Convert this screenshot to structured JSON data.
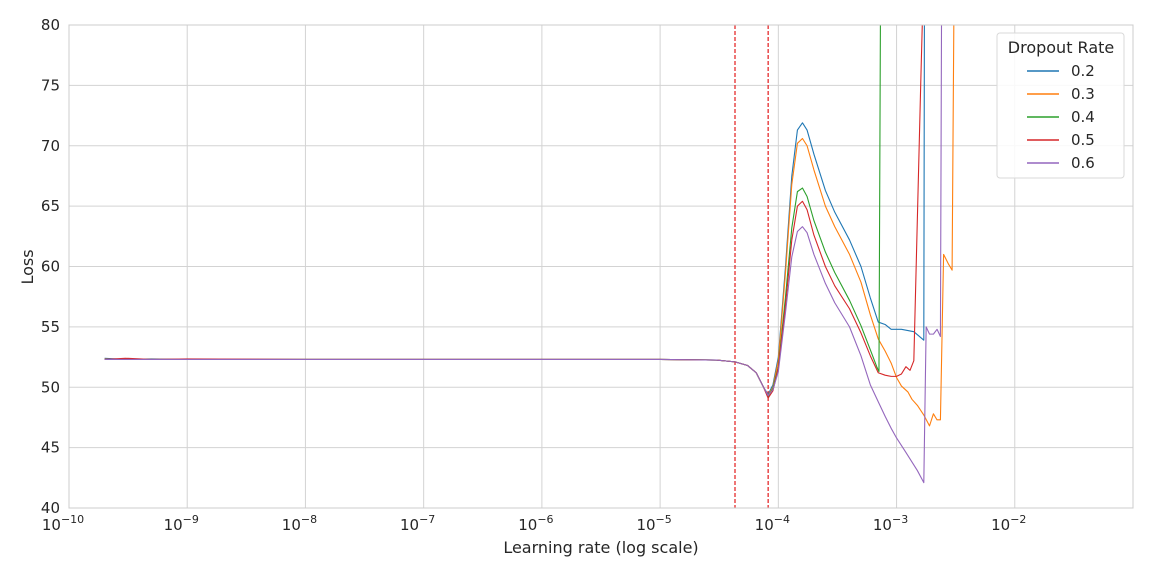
{
  "chart_data": {
    "type": "line",
    "xlabel": "Learning rate (log scale)",
    "ylabel": "Loss",
    "xscale": "log",
    "xlim": [
      1e-10,
      0.1
    ],
    "ylim": [
      40,
      80
    ],
    "grid": true,
    "legend_placement": "top-right",
    "legend_title": "Dropout Rate",
    "x_ticks": [
      {
        "value": 1e-10,
        "base": "10",
        "exp": "−10"
      },
      {
        "value": 1e-09,
        "base": "10",
        "exp": "−9"
      },
      {
        "value": 1e-08,
        "base": "10",
        "exp": "−8"
      },
      {
        "value": 1e-07,
        "base": "10",
        "exp": "−7"
      },
      {
        "value": 1e-06,
        "base": "10",
        "exp": "−6"
      },
      {
        "value": 1e-05,
        "base": "10",
        "exp": "−5"
      },
      {
        "value": 0.0001,
        "base": "10",
        "exp": "−4"
      },
      {
        "value": 0.001,
        "base": "10",
        "exp": "−3"
      },
      {
        "value": 0.01,
        "base": "10",
        "exp": "−2"
      }
    ],
    "y_ticks": [
      40,
      45,
      50,
      55,
      60,
      65,
      70,
      75,
      80
    ],
    "annotations": {
      "vertical_lines": [
        {
          "x": 4.3e-05,
          "color": "#e31a1c",
          "style": "dashed"
        },
        {
          "x": 8.2e-05,
          "color": "#e31a1c",
          "style": "dashed"
        }
      ]
    },
    "series": [
      {
        "name": "0.2",
        "color": "#1f77b4",
        "points": [
          [
            2e-10,
            52.4
          ],
          [
            3e-10,
            52.3
          ],
          [
            5e-10,
            52.35
          ],
          [
            1e-09,
            52.3
          ],
          [
            1e-08,
            52.3
          ],
          [
            1e-07,
            52.3
          ],
          [
            1e-06,
            52.3
          ],
          [
            1e-05,
            52.3
          ],
          [
            3e-05,
            52.25
          ],
          [
            4.3e-05,
            52.1
          ],
          [
            5.5e-05,
            51.8
          ],
          [
            6.5e-05,
            51.2
          ],
          [
            7.5e-05,
            50.0
          ],
          [
            8.2e-05,
            49.4
          ],
          [
            9e-05,
            50.2
          ],
          [
            0.0001,
            52.5
          ],
          [
            0.000115,
            60.0
          ],
          [
            0.00013,
            67.5
          ],
          [
            0.000145,
            71.3
          ],
          [
            0.00016,
            71.9
          ],
          [
            0.000175,
            71.3
          ],
          [
            0.0002,
            69.3
          ],
          [
            0.00025,
            66.3
          ],
          [
            0.0003,
            64.5
          ],
          [
            0.0004,
            62.2
          ],
          [
            0.0005,
            60.0
          ],
          [
            0.0006,
            57.4
          ],
          [
            0.0007,
            55.4
          ],
          [
            0.0008,
            55.2
          ],
          [
            0.0009,
            54.8
          ],
          [
            0.0011,
            54.8
          ],
          [
            0.0014,
            54.6
          ],
          [
            0.0017,
            53.9
          ],
          [
            0.00172,
            80.0
          ]
        ]
      },
      {
        "name": "0.3",
        "color": "#ff7f0e",
        "points": [
          [
            2e-10,
            52.35
          ],
          [
            3e-10,
            52.3
          ],
          [
            5e-10,
            52.3
          ],
          [
            1e-09,
            52.3
          ],
          [
            1e-08,
            52.3
          ],
          [
            1e-07,
            52.3
          ],
          [
            1e-06,
            52.3
          ],
          [
            1e-05,
            52.3
          ],
          [
            3e-05,
            52.25
          ],
          [
            4.3e-05,
            52.1
          ],
          [
            5.5e-05,
            51.8
          ],
          [
            6.5e-05,
            51.2
          ],
          [
            7.5e-05,
            50.0
          ],
          [
            8.2e-05,
            49.3
          ],
          [
            9e-05,
            50.0
          ],
          [
            0.0001,
            52.2
          ],
          [
            0.000115,
            59.5
          ],
          [
            0.00013,
            66.8
          ],
          [
            0.000145,
            70.2
          ],
          [
            0.00016,
            70.6
          ],
          [
            0.000175,
            70.0
          ],
          [
            0.0002,
            68.0
          ],
          [
            0.00025,
            65.0
          ],
          [
            0.0003,
            63.3
          ],
          [
            0.0004,
            61.0
          ],
          [
            0.0005,
            58.7
          ],
          [
            0.0006,
            56.0
          ],
          [
            0.0007,
            54.0
          ],
          [
            0.0008,
            53.0
          ],
          [
            0.0009,
            52.0
          ],
          [
            0.001,
            50.8
          ],
          [
            0.0011,
            50.1
          ],
          [
            0.00125,
            49.6
          ],
          [
            0.00135,
            49.0
          ],
          [
            0.0015,
            48.5
          ],
          [
            0.0017,
            47.7
          ],
          [
            0.0019,
            46.8
          ],
          [
            0.00205,
            47.8
          ],
          [
            0.0022,
            47.3
          ],
          [
            0.00235,
            47.3
          ],
          [
            0.0025,
            61.0
          ],
          [
            0.00275,
            60.2
          ],
          [
            0.00295,
            59.7
          ],
          [
            0.00305,
            80.0
          ]
        ]
      },
      {
        "name": "0.4",
        "color": "#2ca02c",
        "points": [
          [
            2e-10,
            52.3
          ],
          [
            3e-10,
            52.35
          ],
          [
            5e-10,
            52.3
          ],
          [
            1e-09,
            52.3
          ],
          [
            1e-08,
            52.3
          ],
          [
            1e-07,
            52.3
          ],
          [
            1e-06,
            52.3
          ],
          [
            1e-05,
            52.3
          ],
          [
            3e-05,
            52.25
          ],
          [
            4.3e-05,
            52.1
          ],
          [
            5.5e-05,
            51.8
          ],
          [
            6.5e-05,
            51.2
          ],
          [
            7.5e-05,
            50.0
          ],
          [
            8.2e-05,
            49.2
          ],
          [
            9e-05,
            49.9
          ],
          [
            0.0001,
            51.7
          ],
          [
            0.000115,
            57.5
          ],
          [
            0.00013,
            63.2
          ],
          [
            0.000145,
            66.2
          ],
          [
            0.00016,
            66.5
          ],
          [
            0.000175,
            65.8
          ],
          [
            0.0002,
            63.8
          ],
          [
            0.00025,
            61.2
          ],
          [
            0.0003,
            59.5
          ],
          [
            0.0004,
            57.2
          ],
          [
            0.0005,
            55.1
          ],
          [
            0.0006,
            53.1
          ],
          [
            0.00068,
            51.7
          ],
          [
            0.00071,
            51.3
          ],
          [
            0.00073,
            80.0
          ]
        ]
      },
      {
        "name": "0.5",
        "color": "#d62728",
        "points": [
          [
            2e-10,
            52.3
          ],
          [
            3e-10,
            52.4
          ],
          [
            5e-10,
            52.3
          ],
          [
            1e-09,
            52.35
          ],
          [
            1e-08,
            52.3
          ],
          [
            1e-07,
            52.3
          ],
          [
            1e-06,
            52.3
          ],
          [
            1e-05,
            52.3
          ],
          [
            3e-05,
            52.25
          ],
          [
            4.3e-05,
            52.1
          ],
          [
            5.5e-05,
            51.8
          ],
          [
            6.5e-05,
            51.2
          ],
          [
            7.5e-05,
            50.0
          ],
          [
            8.2e-05,
            49.1
          ],
          [
            9e-05,
            49.7
          ],
          [
            0.0001,
            51.6
          ],
          [
            0.000115,
            56.8
          ],
          [
            0.00013,
            62.2
          ],
          [
            0.000145,
            65.0
          ],
          [
            0.00016,
            65.4
          ],
          [
            0.000175,
            64.7
          ],
          [
            0.0002,
            62.6
          ],
          [
            0.00025,
            60.0
          ],
          [
            0.0003,
            58.4
          ],
          [
            0.0004,
            56.5
          ],
          [
            0.0005,
            54.5
          ],
          [
            0.0006,
            52.6
          ],
          [
            0.0007,
            51.2
          ],
          [
            0.0008,
            51.0
          ],
          [
            0.0009,
            50.9
          ],
          [
            0.001,
            50.9
          ],
          [
            0.0011,
            51.1
          ],
          [
            0.0012,
            51.7
          ],
          [
            0.0013,
            51.4
          ],
          [
            0.0014,
            52.2
          ],
          [
            0.0016,
            75.0
          ],
          [
            0.00165,
            80.0
          ]
        ]
      },
      {
        "name": "0.6",
        "color": "#9467bd",
        "points": [
          [
            2e-10,
            52.3
          ],
          [
            3e-10,
            52.3
          ],
          [
            5e-10,
            52.3
          ],
          [
            1e-09,
            52.3
          ],
          [
            1e-08,
            52.3
          ],
          [
            1e-07,
            52.3
          ],
          [
            1e-06,
            52.3
          ],
          [
            1e-05,
            52.3
          ],
          [
            3e-05,
            52.25
          ],
          [
            4.3e-05,
            52.1
          ],
          [
            5.5e-05,
            51.8
          ],
          [
            6.5e-05,
            51.2
          ],
          [
            7.5e-05,
            50.0
          ],
          [
            8.2e-05,
            49.3
          ],
          [
            9e-05,
            49.8
          ],
          [
            0.0001,
            51.3
          ],
          [
            0.000115,
            56.2
          ],
          [
            0.00013,
            60.8
          ],
          [
            0.000145,
            62.9
          ],
          [
            0.00016,
            63.3
          ],
          [
            0.000175,
            62.8
          ],
          [
            0.0002,
            61.0
          ],
          [
            0.00025,
            58.6
          ],
          [
            0.0003,
            57.0
          ],
          [
            0.0004,
            55.0
          ],
          [
            0.0005,
            52.6
          ],
          [
            0.0006,
            50.2
          ],
          [
            0.0007,
            48.8
          ],
          [
            0.0008,
            47.6
          ],
          [
            0.0009,
            46.6
          ],
          [
            0.001,
            45.8
          ],
          [
            0.0012,
            44.6
          ],
          [
            0.0015,
            43.1
          ],
          [
            0.0017,
            42.1
          ],
          [
            0.00178,
            55.0
          ],
          [
            0.0019,
            54.4
          ],
          [
            0.00205,
            54.4
          ],
          [
            0.0022,
            54.8
          ],
          [
            0.00235,
            54.2
          ],
          [
            0.0024,
            80.0
          ]
        ]
      }
    ]
  }
}
